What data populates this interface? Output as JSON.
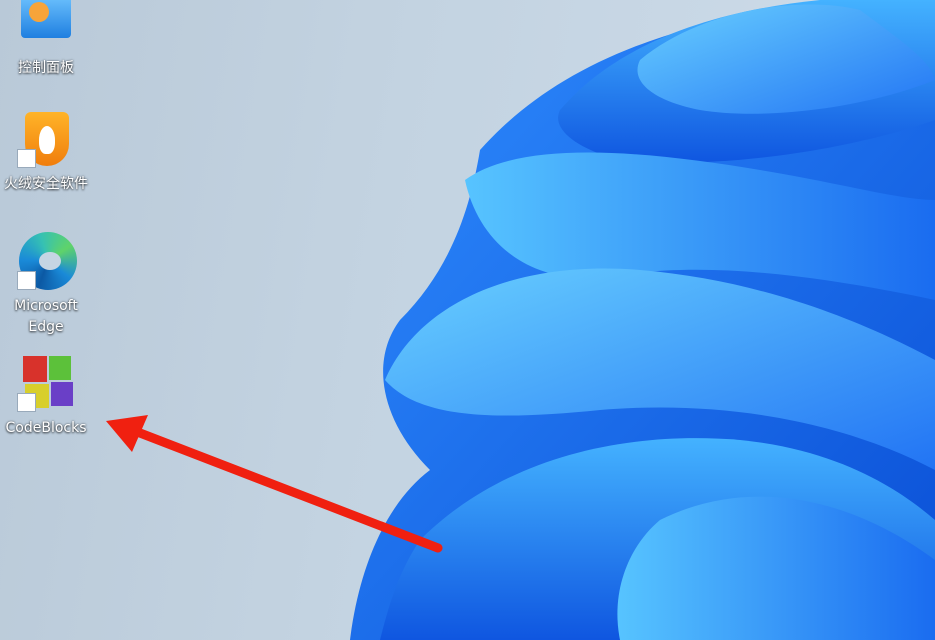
{
  "desktop": {
    "icons": [
      {
        "label": "控制面板"
      },
      {
        "label": "火绒安全软件"
      },
      {
        "label": "Microsoft Edge"
      },
      {
        "label": "CodeBlocks"
      }
    ]
  }
}
